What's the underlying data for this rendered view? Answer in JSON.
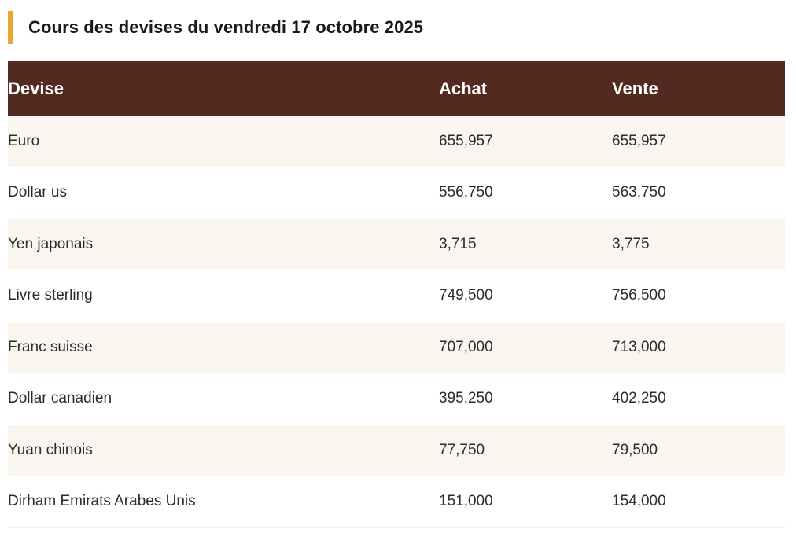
{
  "page": {
    "title": "Cours des devises du vendredi 17 octobre 2025"
  },
  "table": {
    "headers": {
      "devise": "Devise",
      "achat": "Achat",
      "vente": "Vente"
    },
    "rows": [
      {
        "devise": "Euro",
        "achat": "655,957",
        "vente": "655,957"
      },
      {
        "devise": "Dollar us",
        "achat": "556,750",
        "vente": "563,750"
      },
      {
        "devise": "Yen japonais",
        "achat": "3,715",
        "vente": "3,775"
      },
      {
        "devise": "Livre sterling",
        "achat": "749,500",
        "vente": "756,500"
      },
      {
        "devise": "Franc suisse",
        "achat": "707,000",
        "vente": "713,000"
      },
      {
        "devise": "Dollar canadien",
        "achat": "395,250",
        "vente": "402,250"
      },
      {
        "devise": "Yuan chinois",
        "achat": "77,750",
        "vente": "79,500"
      },
      {
        "devise": "Dirham Emirats Arabes Unis",
        "achat": "151,000",
        "vente": "154,000"
      }
    ]
  },
  "colors": {
    "accent": "#e8a72f",
    "header_bg": "#522a1f",
    "row_alt_bg": "#faf5ef"
  }
}
